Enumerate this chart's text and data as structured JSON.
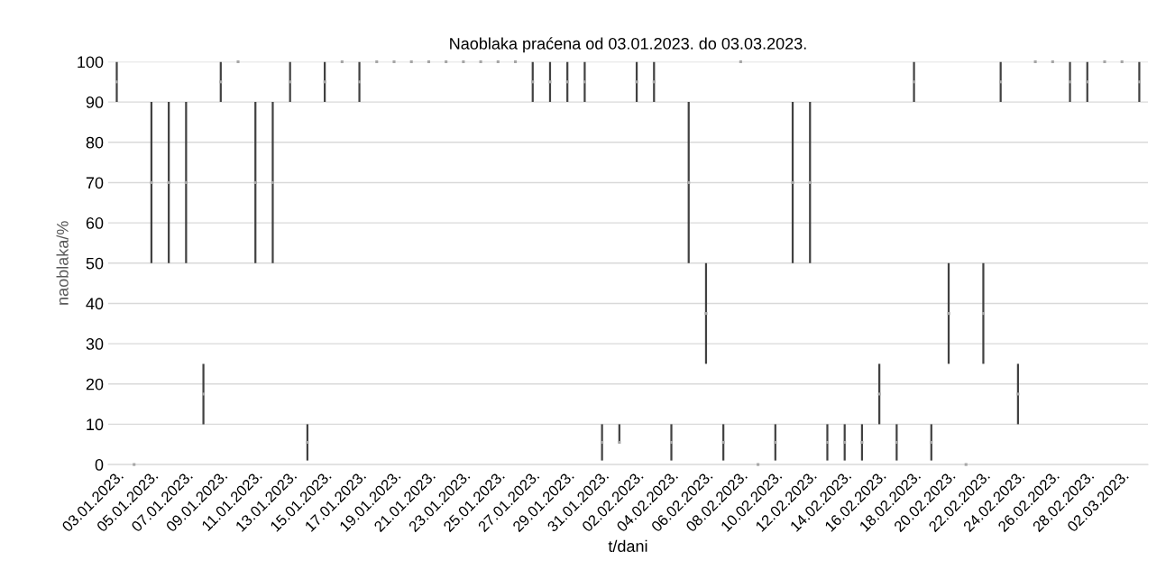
{
  "chart_data": {
    "type": "scatter",
    "title": "Naoblaka praćena od 03.01.2023. do 03.03.2023.",
    "xlabel": "t/dani",
    "ylabel": "naoblaka/%",
    "categories": [
      "03.01.2023.",
      null,
      "05.01.2023.",
      null,
      "07.01.2023.",
      null,
      "09.01.2023.",
      null,
      "11.01.2023.",
      null,
      "13.01.2023.",
      null,
      "15.01.2023.",
      null,
      "17.01.2023.",
      null,
      "19.01.2023.",
      null,
      "21.01.2023.",
      null,
      "23.01.2023.",
      null,
      "25.01.2023.",
      null,
      "27.01.2023.",
      null,
      "29.01.2023.",
      null,
      "31.01.2023.",
      null,
      "02.02.2023.",
      null,
      "04.02.2023.",
      null,
      "06.02.2023.",
      null,
      "08.02.2023.",
      null,
      "10.02.2023.",
      null,
      "12.02.2023.",
      null,
      "14.02.2023.",
      null,
      "16.02.2023.",
      null,
      "18.02.2023.",
      null,
      "20.02.2023.",
      null,
      "22.02.2023.",
      null,
      "24.02.2023.",
      null,
      "26.02.2023.",
      null,
      "28.02.2023.",
      null,
      "02.03.2023.",
      null
    ],
    "series": [
      {
        "color": "#a6a6a6",
        "values": [
          95,
          0,
          70,
          70,
          70,
          17.5,
          95,
          100,
          70,
          70,
          95,
          5.5,
          95,
          100,
          95,
          100,
          100,
          100,
          100,
          100,
          100,
          100,
          100,
          100,
          95,
          95,
          95,
          95,
          5.5,
          5.5,
          95,
          95,
          5.5,
          70,
          37.5,
          5.5,
          100,
          0,
          5.5,
          70,
          70,
          5.5,
          5.5,
          5.5,
          17.5,
          5.5,
          95,
          5.5,
          37.5,
          0,
          37.5,
          95,
          17.5,
          100,
          100,
          95,
          95,
          100,
          100,
          95
        ],
        "errors": [
          5,
          null,
          20,
          20,
          20,
          7.5,
          5,
          null,
          20,
          20,
          5,
          4.5,
          5,
          null,
          5,
          null,
          null,
          null,
          null,
          null,
          null,
          null,
          null,
          null,
          5,
          5,
          5,
          5,
          4.5,
          [
            5.5,
            10
          ],
          5,
          5,
          4.5,
          20,
          12.5,
          4.5,
          null,
          null,
          4.5,
          20,
          20,
          4.5,
          4.5,
          4.5,
          7.5,
          4.5,
          5,
          4.5,
          12.5,
          null,
          12.5,
          5,
          7.5,
          null,
          null,
          5,
          5,
          null,
          null,
          5
        ]
      }
    ],
    "ylim": [
      0,
      100
    ],
    "yticks": [
      0,
      10,
      20,
      30,
      40,
      50,
      60,
      70,
      80,
      90,
      100
    ],
    "grid": "y"
  }
}
